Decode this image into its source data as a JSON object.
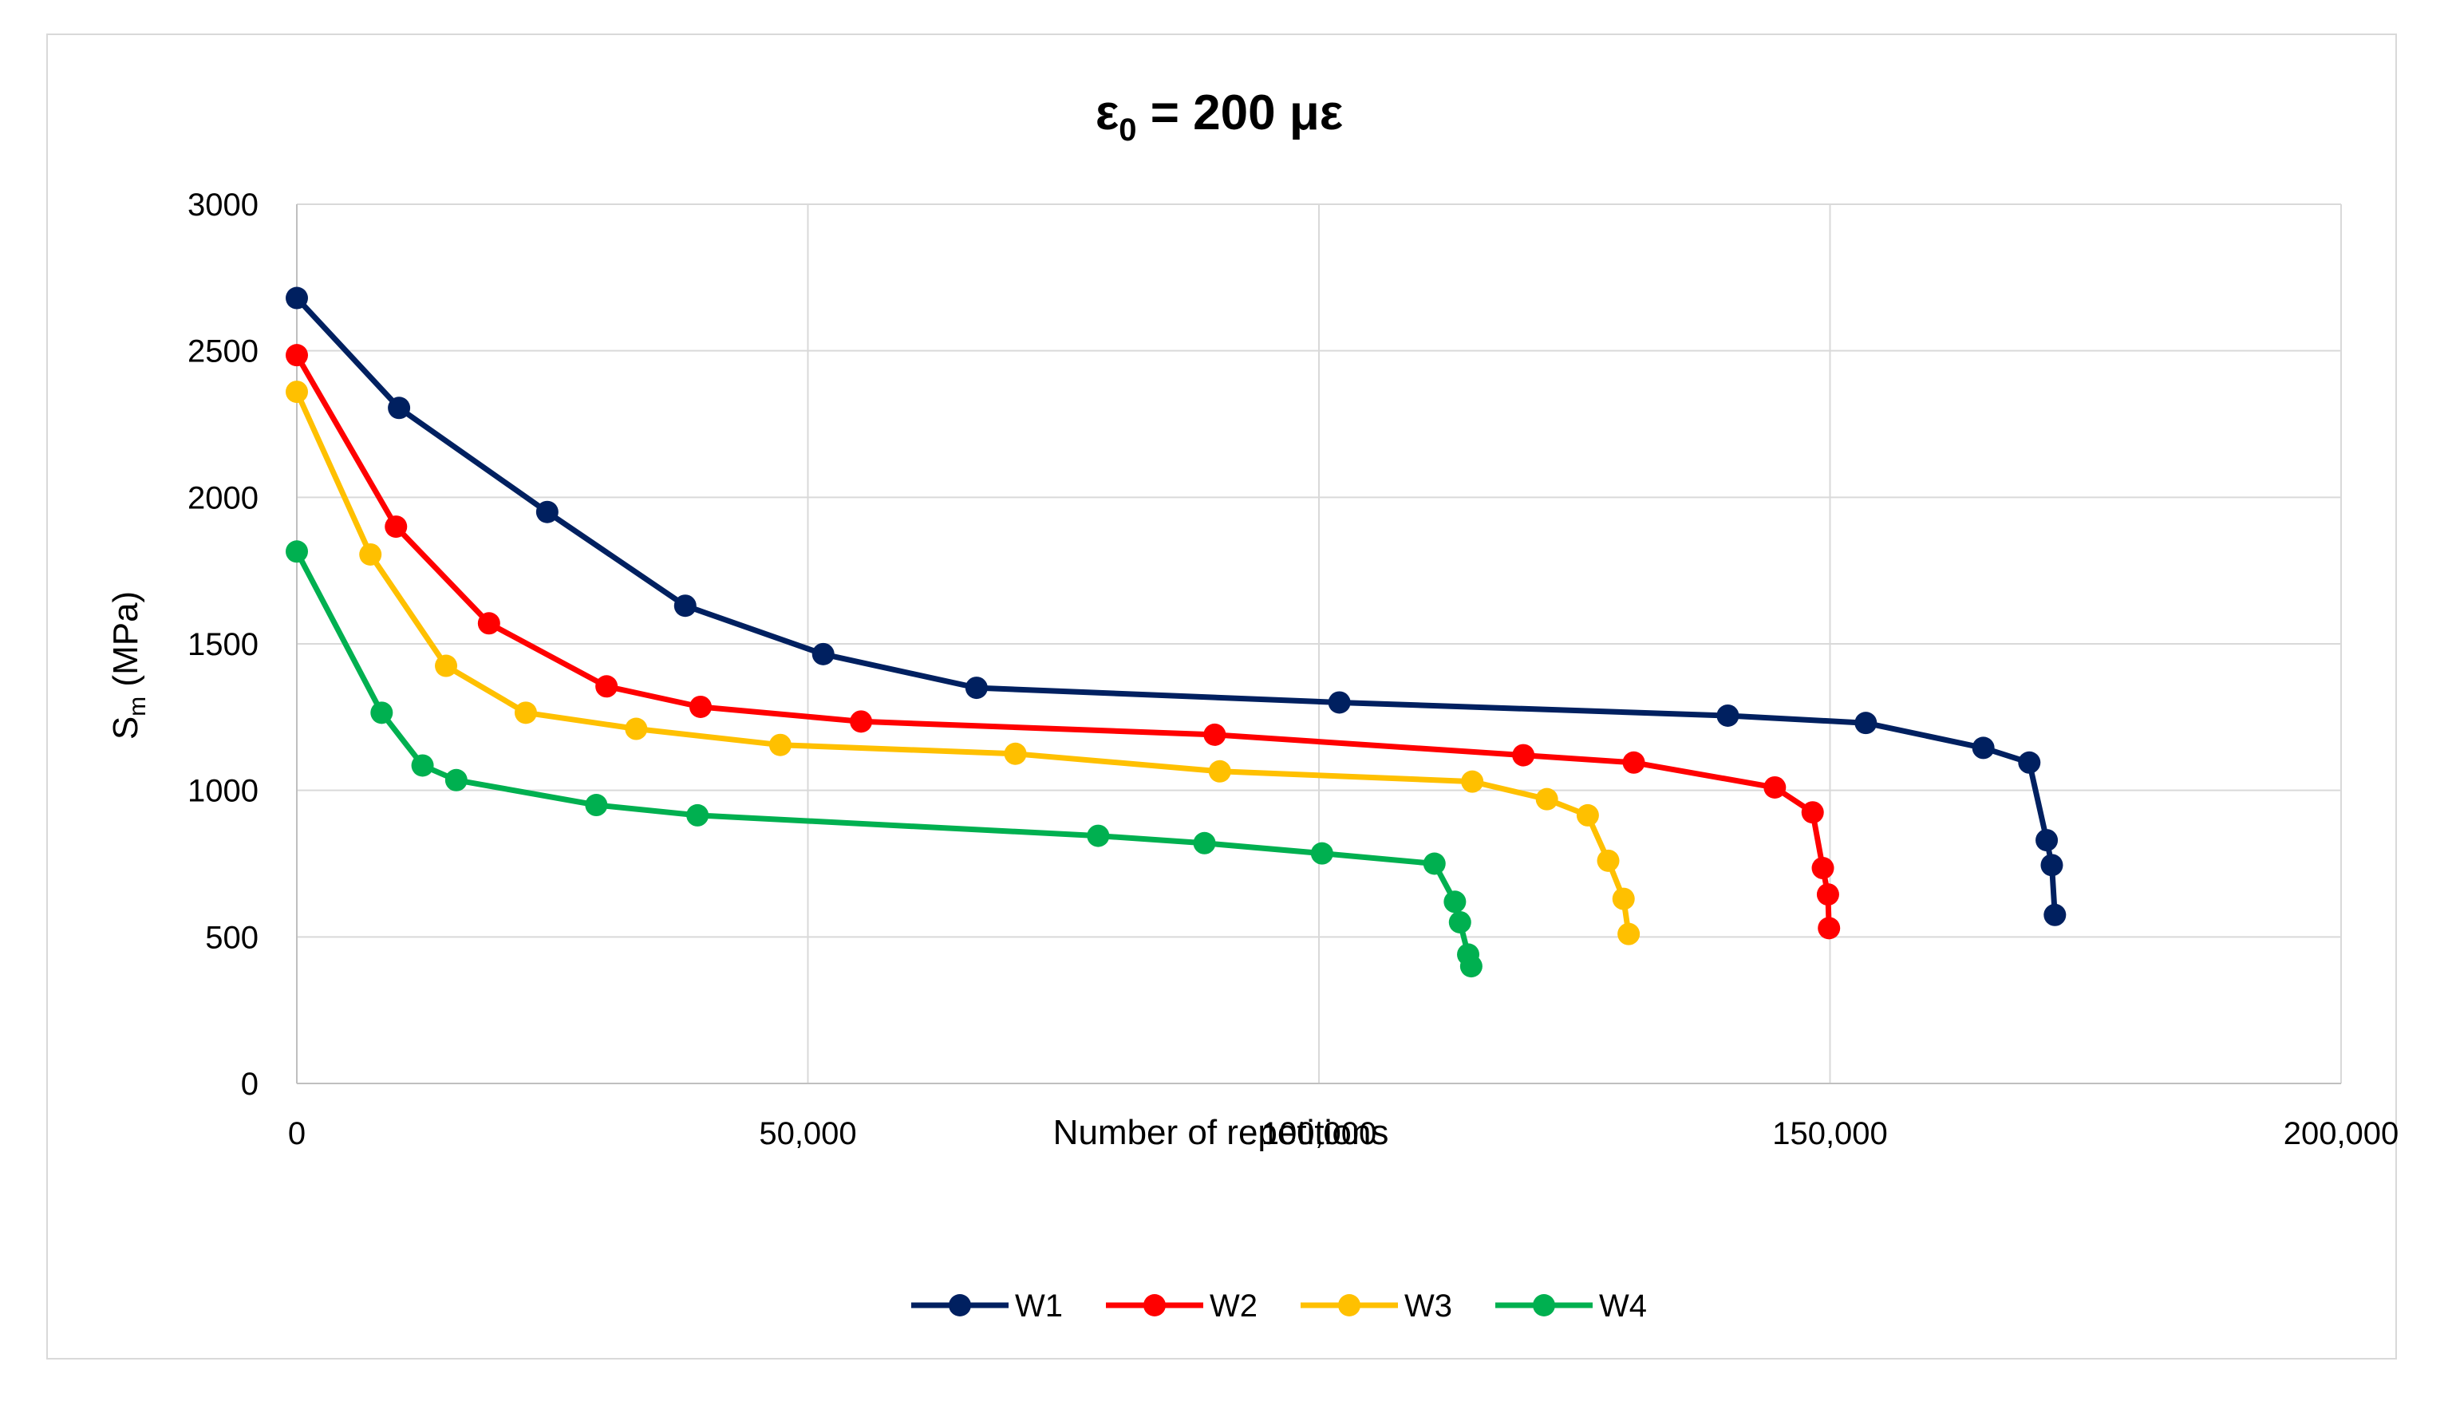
{
  "chart_data": {
    "type": "line",
    "title": {
      "main": "ε",
      "sub": "0",
      "rest": " = 200 με"
    },
    "xlabel": "Number of repetitions",
    "ylabel": {
      "main": "S",
      "sub": "m",
      "rest": " (MPa)"
    },
    "xlim": [
      0,
      200000
    ],
    "ylim": [
      0,
      3000
    ],
    "x_ticks": [
      0,
      50000,
      100000,
      150000,
      200000
    ],
    "x_tick_labels": [
      "0",
      "50,000",
      "100,000",
      "150,000",
      "200,000"
    ],
    "y_ticks": [
      0,
      500,
      1000,
      1500,
      2000,
      2500,
      3000
    ],
    "y_tick_labels": [
      "0",
      "500",
      "1000",
      "1500",
      "2000",
      "2500",
      "3000"
    ],
    "grid": true,
    "legend_position": "bottom",
    "series": [
      {
        "name": "W1",
        "color": "#002060",
        "points": [
          [
            0,
            2680
          ],
          [
            10000,
            2305
          ],
          [
            24500,
            1950
          ],
          [
            38000,
            1630
          ],
          [
            51500,
            1465
          ],
          [
            66500,
            1350
          ],
          [
            102000,
            1300
          ],
          [
            140000,
            1255
          ],
          [
            153500,
            1230
          ],
          [
            165000,
            1145
          ],
          [
            169500,
            1095
          ],
          [
            171200,
            830
          ],
          [
            171700,
            745
          ],
          [
            172000,
            575
          ]
        ]
      },
      {
        "name": "W2",
        "color": "#ff0000",
        "points": [
          [
            0,
            2485
          ],
          [
            9700,
            1900
          ],
          [
            18800,
            1570
          ],
          [
            30300,
            1355
          ],
          [
            39500,
            1285
          ],
          [
            55200,
            1235
          ],
          [
            89800,
            1190
          ],
          [
            120000,
            1120
          ],
          [
            130800,
            1095
          ],
          [
            144600,
            1010
          ],
          [
            148300,
            925
          ],
          [
            149300,
            735
          ],
          [
            149800,
            645
          ],
          [
            149900,
            530
          ]
        ]
      },
      {
        "name": "W3",
        "color": "#ffc000",
        "points": [
          [
            0,
            2360
          ],
          [
            7200,
            1805
          ],
          [
            14600,
            1425
          ],
          [
            22400,
            1265
          ],
          [
            33200,
            1210
          ],
          [
            47300,
            1155
          ],
          [
            70300,
            1125
          ],
          [
            90300,
            1065
          ],
          [
            115000,
            1030
          ],
          [
            122300,
            970
          ],
          [
            126300,
            915
          ],
          [
            128300,
            760
          ],
          [
            129800,
            630
          ],
          [
            130300,
            510
          ]
        ]
      },
      {
        "name": "W4",
        "color": "#00b050",
        "points": [
          [
            0,
            1815
          ],
          [
            8300,
            1265
          ],
          [
            12300,
            1085
          ],
          [
            15600,
            1035
          ],
          [
            29300,
            950
          ],
          [
            39200,
            915
          ],
          [
            78400,
            845
          ],
          [
            88800,
            820
          ],
          [
            100300,
            785
          ],
          [
            111300,
            750
          ],
          [
            113300,
            620
          ],
          [
            113800,
            550
          ],
          [
            114600,
            440
          ],
          [
            114900,
            400
          ]
        ]
      }
    ]
  }
}
